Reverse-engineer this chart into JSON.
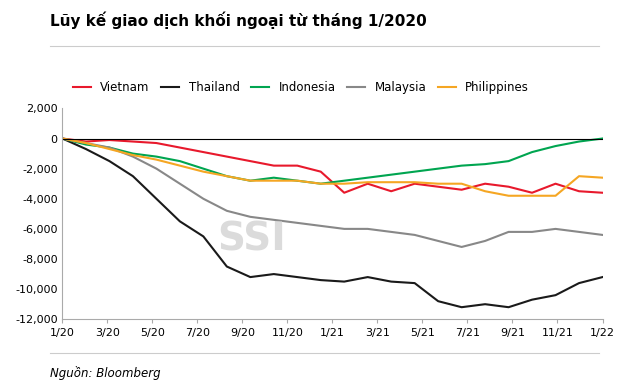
{
  "title": "Lũy kế giao dịch khối ngoại từ tháng 1/2020",
  "footnote": "Nguồn: Bloomberg",
  "watermark": "SSI",
  "x_labels": [
    "1/20",
    "3/20",
    "5/20",
    "7/20",
    "9/20",
    "11/20",
    "1/21",
    "3/21",
    "5/21",
    "7/21",
    "9/21",
    "11/21",
    "1/22"
  ],
  "ylim": [
    -12000,
    2000
  ],
  "yticks": [
    2000,
    0,
    -2000,
    -4000,
    -6000,
    -8000,
    -10000,
    -12000
  ],
  "series": {
    "Vietnam": {
      "color": "#e8192c",
      "data": [
        0,
        -200,
        -100,
        -200,
        -300,
        -600,
        -900,
        -1200,
        -1500,
        -1800,
        -1800,
        -2200,
        -3600,
        -3000,
        -3500,
        -3000,
        -3200,
        -3400,
        -3000,
        -3200,
        -3600,
        -3000,
        -3500,
        -3600
      ]
    },
    "Thailand": {
      "color": "#1a1a1a",
      "data": [
        0,
        -700,
        -1500,
        -2500,
        -4000,
        -5500,
        -6500,
        -8500,
        -9200,
        -9000,
        -9200,
        -9400,
        -9500,
        -9200,
        -9500,
        -9600,
        -10800,
        -11200,
        -11000,
        -11200,
        -10700,
        -10400,
        -9600,
        -9200
      ]
    },
    "Indonesia": {
      "color": "#00a550",
      "data": [
        0,
        -400,
        -600,
        -1000,
        -1200,
        -1500,
        -2000,
        -2500,
        -2800,
        -2600,
        -2800,
        -3000,
        -2800,
        -2600,
        -2400,
        -2200,
        -2000,
        -1800,
        -1700,
        -1500,
        -900,
        -500,
        -200,
        0
      ]
    },
    "Malaysia": {
      "color": "#888888",
      "data": [
        0,
        -300,
        -600,
        -1200,
        -2000,
        -3000,
        -4000,
        -4800,
        -5200,
        -5400,
        -5600,
        -5800,
        -6000,
        -6000,
        -6200,
        -6400,
        -6800,
        -7200,
        -6800,
        -6200,
        -6200,
        -6000,
        -6200,
        -6400
      ]
    },
    "Philippines": {
      "color": "#f5a623",
      "data": [
        0,
        -300,
        -700,
        -1100,
        -1400,
        -1800,
        -2200,
        -2500,
        -2800,
        -2800,
        -2800,
        -3000,
        -3000,
        -2900,
        -2900,
        -2900,
        -3000,
        -3000,
        -3500,
        -3800,
        -3800,
        -3800,
        -2500,
        -2600
      ]
    }
  },
  "background_color": "#ffffff",
  "title_fontsize": 11,
  "legend_fontsize": 8.5,
  "axis_fontsize": 8
}
